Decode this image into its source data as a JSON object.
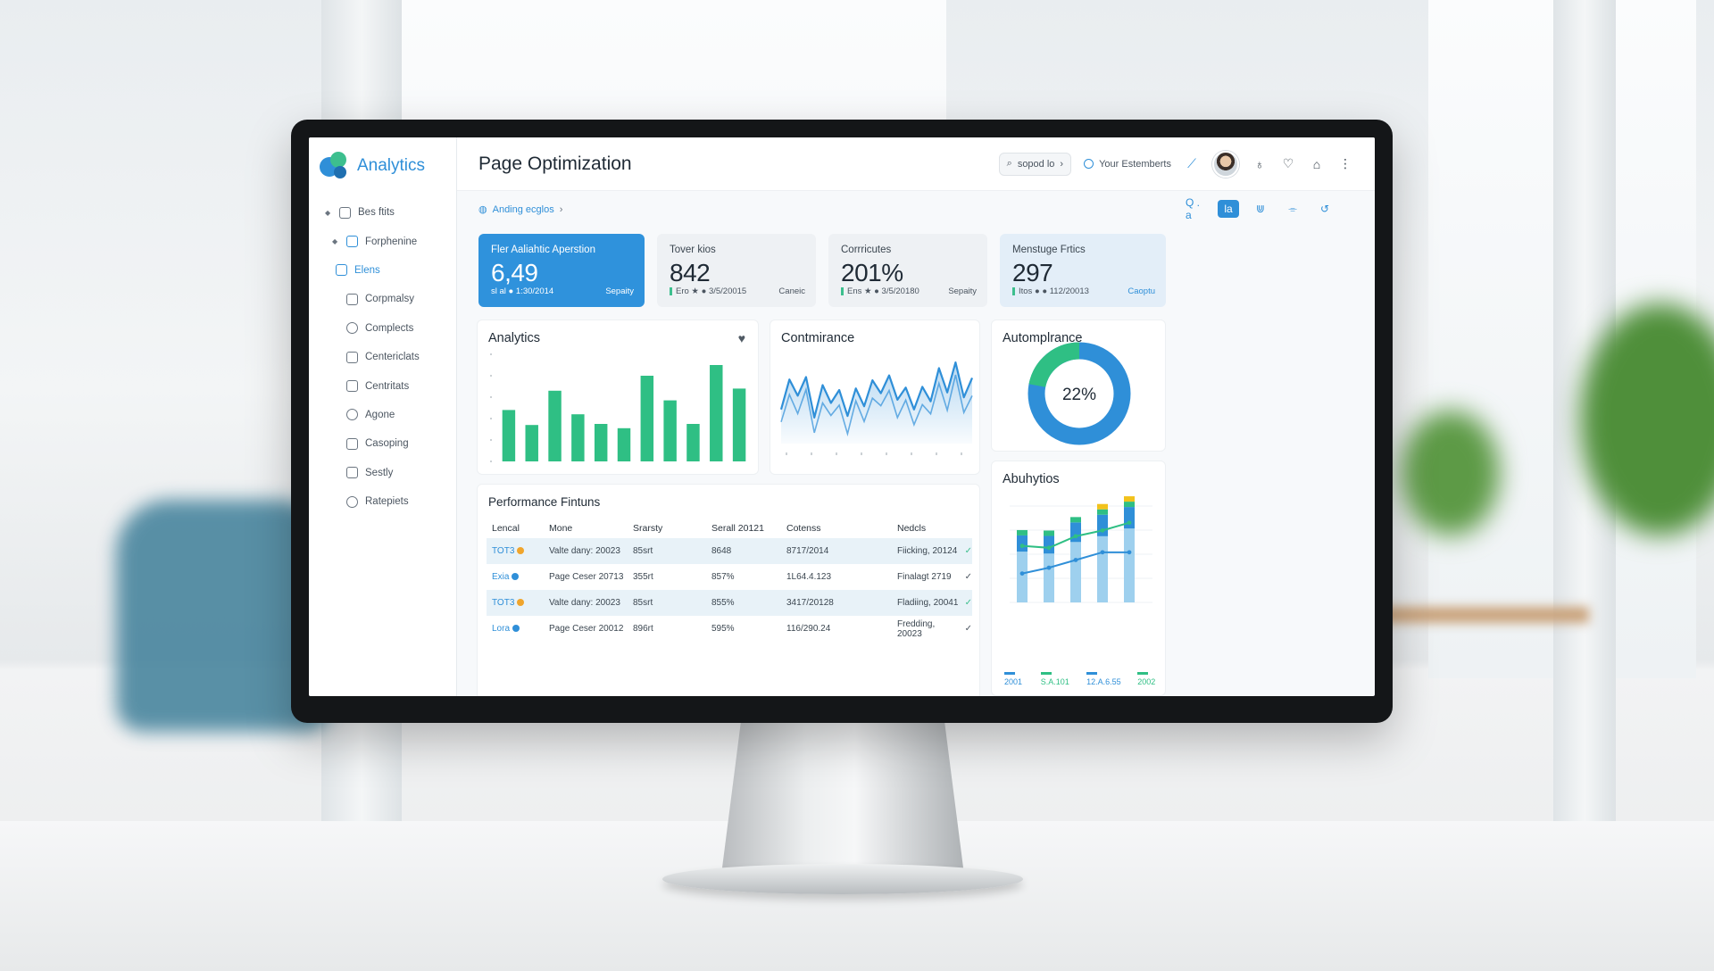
{
  "app": {
    "brand": "Analytics",
    "page_title": "Page Optimization"
  },
  "sidebar": {
    "items": [
      {
        "label": "Bes ftits",
        "icon": "file-icon"
      },
      {
        "label": "Forphenine",
        "icon": "image-icon"
      },
      {
        "label": "Elens",
        "icon": "chat-icon"
      },
      {
        "label": "Corpmalsy",
        "icon": "window-icon"
      },
      {
        "label": "Complects",
        "icon": "clock-icon"
      },
      {
        "label": "Centericlats",
        "icon": "grid-icon"
      },
      {
        "label": "Centritats",
        "icon": "list-icon"
      },
      {
        "label": "Agone",
        "icon": "pen-icon"
      },
      {
        "label": "Casoping",
        "icon": "apps-icon"
      },
      {
        "label": "Sestly",
        "icon": "box-icon"
      },
      {
        "label": "Ratepiets",
        "icon": "clock-icon"
      }
    ]
  },
  "topbar": {
    "search_label": "sopod lo",
    "user_label": "Your Estemberts"
  },
  "breadcrumb": {
    "label": "Anding ecglos"
  },
  "toolbar": {
    "search": "Q . a",
    "active": "la"
  },
  "stats": [
    {
      "label": "Fler Aaliahtic Aperstion",
      "value": "6,49",
      "meta": "sl al ● 1:30/2014",
      "link": "Sepaity"
    },
    {
      "label": "Tover kios",
      "value": "842",
      "meta": "Ero ★ ● 3/5/20015",
      "link": "Caneic"
    },
    {
      "label": "Corrricutes",
      "value": "201%",
      "meta": "Ens ★ ● 3/5/20180",
      "link": "Sepaity"
    },
    {
      "label": "Menstuge Frtics",
      "value": "297",
      "meta": "Itos ● ● 112/20013",
      "link": "Caoptu"
    }
  ],
  "panels": {
    "analytics_title": "Analytics",
    "conformance_title": "Contmirance",
    "autom_title": "Automplrance",
    "abu_title": "Abuhytios",
    "perf_title": "Performance Fintuns"
  },
  "donut": {
    "label": "22%",
    "percent": 22
  },
  "table": {
    "headers": [
      "Lencal",
      "Mone",
      "Srarsty",
      "Serall 20121",
      "Cotenss",
      "Nedcls"
    ],
    "rows": [
      {
        "tag": "TOT3",
        "name": "Valte dany: 20023",
        "c2": "85srt",
        "c3": "8648",
        "c4": "8717/2014",
        "c5": "Fiicking, 20124",
        "c6": "✓",
        "bullet": "#f0a52c",
        "shade": true
      },
      {
        "tag": "Exia",
        "name": "Page Ceser 20713",
        "c2": "355rt",
        "c3": "857%",
        "c4": "1L64.4.123",
        "c5": "Finalagt 2719",
        "c6": "✓",
        "bullet": "#2f8fd8",
        "shade": false
      },
      {
        "tag": "TOT3",
        "name": "Valte dany: 20023",
        "c2": "85srt",
        "c3": "855%",
        "c4": "3417/20128",
        "c5": "Fladiing, 20041",
        "c6": "✓",
        "bullet": "#f0a52c",
        "shade": true
      },
      {
        "tag": "Lora",
        "name": "Page Ceser 20012",
        "c2": "896rt",
        "c3": "595%",
        "c4": "116/290.24",
        "c5": "Fredding, 20023",
        "c6": "✓",
        "bullet": "#2f8fd8",
        "shade": false
      }
    ]
  },
  "chart_data": [
    {
      "type": "bar",
      "values": [
        4.8,
        3.4,
        6.6,
        4.4,
        3.5,
        3.1,
        8.0,
        5.7,
        3.5,
        9.0,
        6.8
      ],
      "ylim": [
        0,
        10
      ],
      "color": "#2fbf84"
    },
    {
      "type": "line",
      "values": [
        4.2,
        7.9,
        5.9,
        8.2,
        3.2,
        7.2,
        5.0,
        6.6,
        3.4,
        6.8,
        4.6,
        7.8,
        6.2,
        8.4,
        5.4,
        6.9,
        4.2,
        7.0,
        5.2,
        9.3,
        6.3,
        10.0,
        5.7,
        8.1
      ],
      "ylim": [
        0,
        11
      ],
      "color": "#2f8fd8"
    },
    {
      "type": "bar",
      "series": [
        {
          "name": "2001",
          "values": [
            1.5,
            1.8,
            2.2,
            2.6,
            2.6
          ],
          "color": "#2f8fd8"
        },
        {
          "name": "S.A.101",
          "values": [
            0.4,
            0.4,
            0.4,
            0.4,
            0.4
          ],
          "color": "#2fbf84"
        },
        {
          "name": "12.A.6.55",
          "values": [
            0,
            0,
            0,
            0.3,
            0.2
          ],
          "color": "#f2c21b"
        },
        {
          "name": "2002",
          "values": [
            2.1,
            2.0,
            2.6,
            2.9,
            3.3
          ],
          "color": "#2fbf84"
        }
      ],
      "ylim": [
        0,
        5
      ],
      "color": "#9ed0ee"
    }
  ],
  "colors": {
    "accent": "#2f8fd8",
    "green": "#2fbf84",
    "orange": "#f0a52c"
  }
}
